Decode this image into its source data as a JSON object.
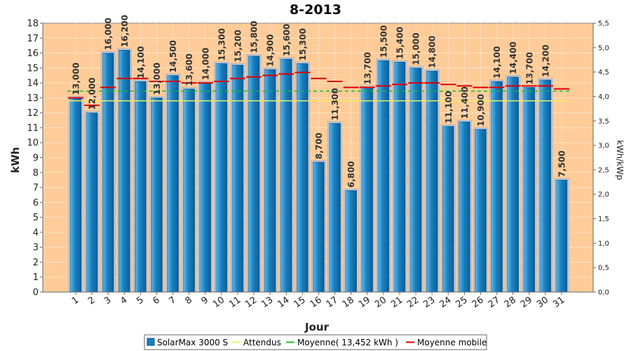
{
  "chart_data": {
    "type": "bar",
    "title": "8-2013",
    "xlabel": "Jour",
    "ylabel": "kWh",
    "y2label": "kWh/kWp",
    "ylim": [
      0,
      18
    ],
    "y2lim": [
      0,
      5.5
    ],
    "y_ticks": [
      "0",
      "1",
      "2",
      "3",
      "4",
      "5",
      "6",
      "7",
      "8",
      "9",
      "10",
      "11",
      "12",
      "13",
      "14",
      "15",
      "16",
      "17",
      "18"
    ],
    "y2_ticks": [
      "0,0",
      "0,5",
      "1,0",
      "1,5",
      "2,0",
      "2,5",
      "3,0",
      "3,5",
      "4,0",
      "4,5",
      "5,0",
      "5,5"
    ],
    "categories": [
      "1",
      "2",
      "3",
      "4",
      "5",
      "6",
      "7",
      "8",
      "9",
      "10",
      "11",
      "12",
      "13",
      "14",
      "15",
      "16",
      "17",
      "18",
      "19",
      "20",
      "21",
      "22",
      "23",
      "24",
      "25",
      "26",
      "27",
      "28",
      "29",
      "30",
      "31"
    ],
    "series": [
      {
        "name": "SolarMax 3000 S",
        "type": "bar",
        "color": "#1a80c0",
        "values": [
          13.0,
          12.0,
          16.0,
          16.2,
          14.1,
          13.0,
          14.5,
          13.6,
          14.0,
          15.3,
          15.2,
          15.8,
          14.9,
          15.6,
          15.3,
          8.7,
          11.3,
          6.8,
          13.7,
          15.5,
          15.4,
          15.0,
          14.8,
          11.1,
          11.4,
          10.9,
          14.1,
          14.4,
          13.7,
          14.2,
          7.5
        ],
        "labels": [
          "13,000",
          "12,000",
          "16,000",
          "16,200",
          "14,100",
          "13,000",
          "14,500",
          "13,600",
          "14,000",
          "15,300",
          "15,200",
          "15,800",
          "14,900",
          "15,600",
          "15,300",
          "8,700",
          "11,300",
          "6,800",
          "13,700",
          "15,500",
          "15,400",
          "15,000",
          "14,800",
          "11,100",
          "11,400",
          "10,900",
          "14,100",
          "14,400",
          "13,700",
          "14,200",
          "7,500"
        ]
      },
      {
        "name": "Attendus",
        "type": "line",
        "color": "#f0f060",
        "values": [
          12.8,
          12.8,
          12.8,
          12.8,
          12.8,
          12.8,
          12.8,
          12.8,
          12.8,
          12.8,
          12.8,
          12.8,
          12.8,
          12.8,
          12.8,
          12.8,
          12.8,
          12.8,
          12.8,
          12.8,
          12.8,
          12.8,
          12.8,
          12.8,
          12.8,
          12.8,
          12.8,
          12.8,
          12.8,
          12.8,
          12.8
        ]
      },
      {
        "name": "Moyenne( 13,452 kWh )",
        "type": "line",
        "color": "#22bb22",
        "values": [
          13.452,
          13.452,
          13.452,
          13.452,
          13.452,
          13.452,
          13.452,
          13.452,
          13.452,
          13.452,
          13.452,
          13.452,
          13.452,
          13.452,
          13.452,
          13.452,
          13.452,
          13.452,
          13.452,
          13.452,
          13.452,
          13.452,
          13.452,
          13.452,
          13.452,
          13.452,
          13.452,
          13.452,
          13.452,
          13.452,
          13.452
        ]
      },
      {
        "name": "Moyenne mobile",
        "type": "step",
        "color": "#dd0000",
        "values": [
          13.0,
          12.5,
          13.7,
          14.3,
          14.3,
          14.1,
          14.1,
          14.0,
          14.0,
          14.1,
          14.3,
          14.4,
          14.5,
          14.6,
          14.7,
          14.3,
          14.1,
          13.7,
          13.7,
          13.8,
          13.9,
          14.0,
          14.0,
          13.9,
          13.8,
          13.7,
          13.7,
          13.8,
          13.8,
          13.8,
          13.6
        ]
      }
    ],
    "grid": true,
    "legend_position": "bottom"
  }
}
